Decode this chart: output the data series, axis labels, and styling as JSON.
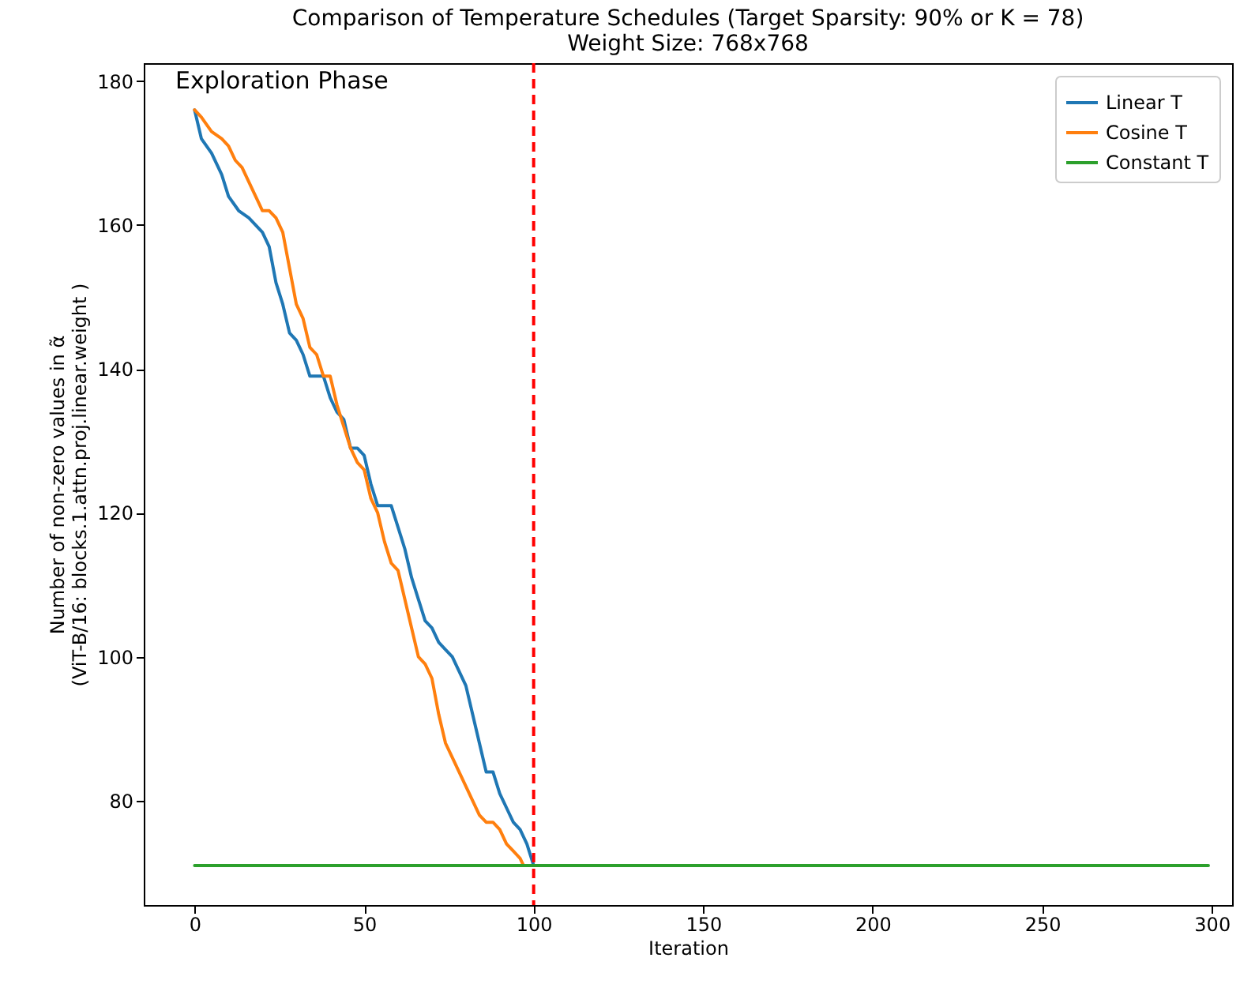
{
  "chart_data": {
    "type": "line",
    "title": "Comparison of Temperature Schedules (Target Sparsity: 90% or K = 78)",
    "subtitle": "Weight Size: 768x768",
    "xlabel": "Iteration",
    "ylabel": [
      "Number of non-zero values in α̃",
      "(ViT-B/16: blocks.1.attn.proj.linear.weight )"
    ],
    "annotations": [
      "Exploration Phase"
    ],
    "series": [
      {
        "name": "Linear T",
        "color": "#1f77b4",
        "x": [
          0,
          2,
          5,
          8,
          10,
          13,
          16,
          20,
          22,
          24,
          26,
          28,
          30,
          32,
          34,
          38,
          40,
          42,
          44,
          46,
          48,
          50,
          52,
          54,
          58,
          60,
          62,
          64,
          66,
          68,
          70,
          72,
          74,
          76,
          78,
          80,
          82,
          84,
          86,
          88,
          90,
          92,
          94,
          96,
          98,
          100
        ],
        "values": [
          176,
          172,
          170,
          167,
          164,
          162,
          161,
          159,
          157,
          152,
          149,
          145,
          144,
          142,
          139,
          139,
          136,
          134,
          133,
          129,
          129,
          128,
          124,
          121,
          121,
          118,
          115,
          111,
          108,
          105,
          104,
          102,
          101,
          100,
          98,
          96,
          92,
          88,
          84,
          84,
          81,
          79,
          77,
          76,
          74,
          71
        ]
      },
      {
        "name": "Cosine T",
        "color": "#ff7f0e",
        "x": [
          0,
          2,
          5,
          8,
          10,
          12,
          14,
          16,
          18,
          20,
          22,
          24,
          26,
          28,
          30,
          32,
          34,
          36,
          38,
          40,
          42,
          44,
          46,
          48,
          50,
          52,
          54,
          56,
          58,
          60,
          62,
          64,
          66,
          68,
          70,
          72,
          74,
          76,
          78,
          80,
          82,
          84,
          86,
          88,
          90,
          92,
          94,
          96,
          97
        ],
        "values": [
          176,
          175,
          173,
          172,
          171,
          169,
          168,
          166,
          164,
          162,
          162,
          161,
          159,
          154,
          149,
          147,
          143,
          142,
          139,
          139,
          135,
          132,
          129,
          127,
          126,
          122,
          120,
          116,
          113,
          112,
          108,
          104,
          100,
          99,
          97,
          92,
          88,
          86,
          84,
          82,
          80,
          78,
          77,
          77,
          76,
          74,
          73,
          72,
          71
        ]
      },
      {
        "name": "Constant T",
        "color": "#2ca02c",
        "x": [
          0,
          299
        ],
        "values": [
          71,
          71
        ]
      }
    ],
    "xlim": [
      -15,
      306
    ],
    "ylim": [
      65.5,
      182.5
    ],
    "xticks": [
      0,
      50,
      100,
      150,
      200,
      250,
      300
    ],
    "yticks": [
      80,
      100,
      120,
      140,
      160,
      180
    ],
    "ref_lines": [
      {
        "axis": "x",
        "value": 100,
        "color": "#ff0000",
        "line_style": "dashed"
      }
    ],
    "legend": "top right",
    "grid": false,
    "line_style": "solid"
  }
}
